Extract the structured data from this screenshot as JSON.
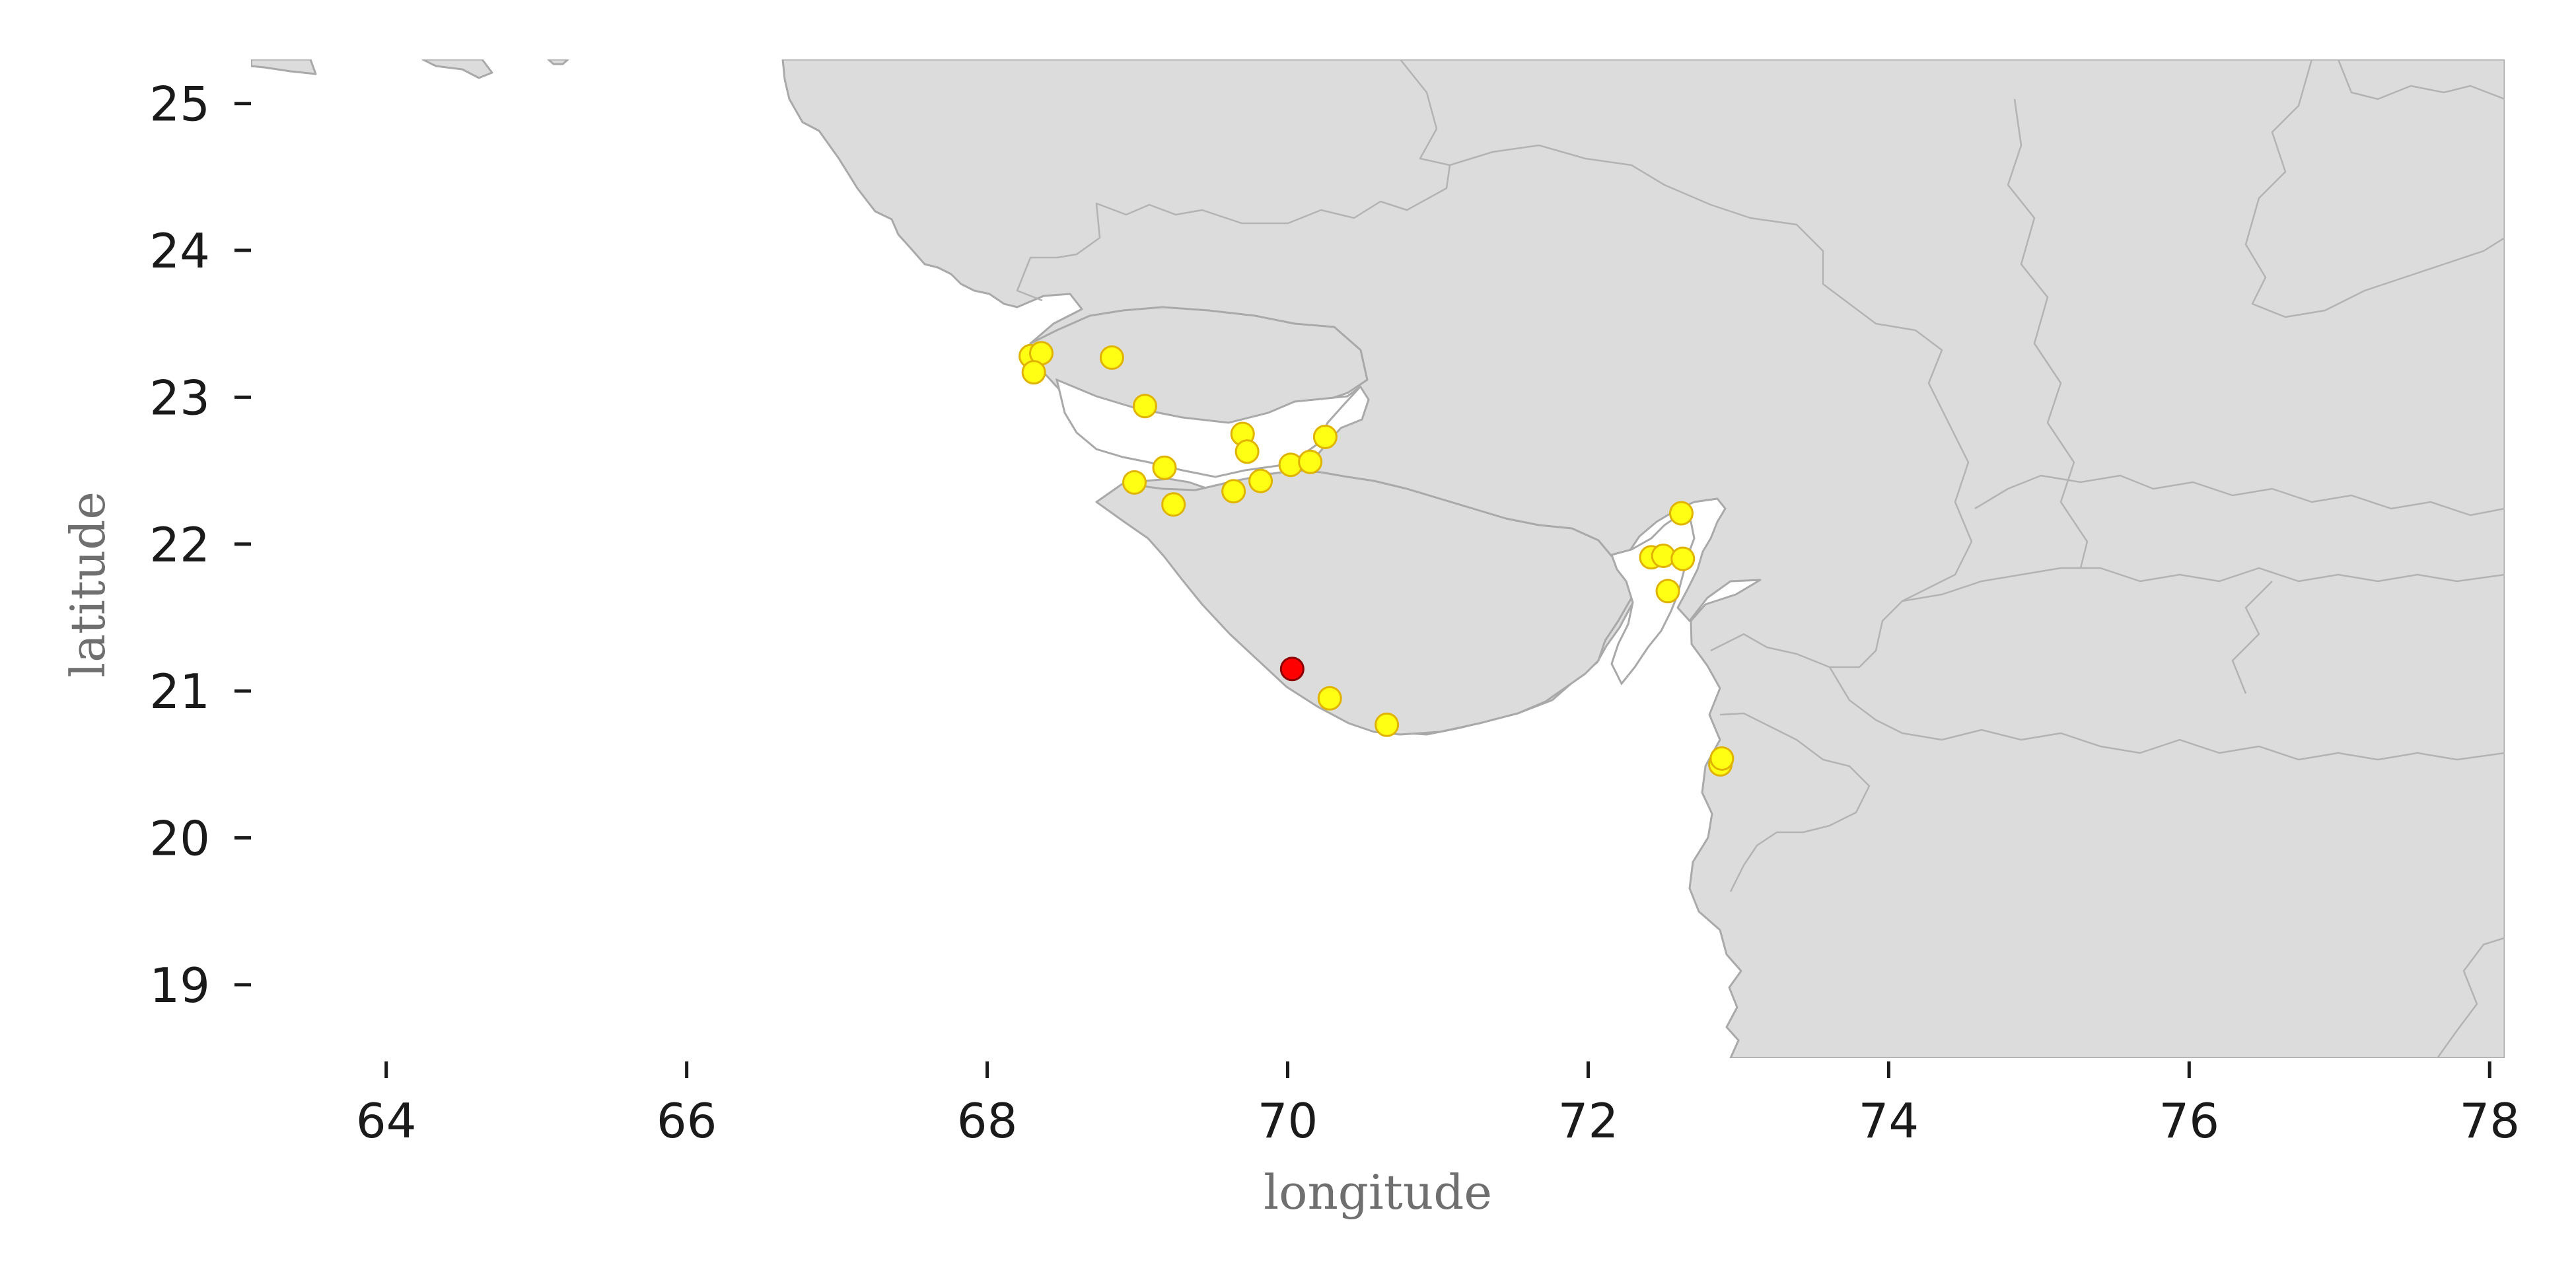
{
  "map": {
    "xlabel": "longitude",
    "ylabel": "latitude",
    "extent": {
      "lon": [
        63.1,
        78.1
      ],
      "lat": [
        18.5,
        25.3
      ]
    },
    "x_ticks": [
      "64",
      "66",
      "68",
      "70",
      "72",
      "74",
      "76",
      "78"
    ],
    "y_ticks": [
      "25",
      "24",
      "23",
      "22",
      "21",
      "20",
      "19"
    ],
    "colors": {
      "land": "#dcdcdc",
      "coast": "#a9a9a9",
      "point_fill": "#ffff14",
      "point_edge": "#e0b300",
      "highlight_fill": "#ff0000",
      "highlight_edge": "#8b0000"
    },
    "points": [
      {
        "lon": 68.29,
        "lat": 23.28
      },
      {
        "lon": 68.36,
        "lat": 23.3
      },
      {
        "lon": 68.31,
        "lat": 23.17
      },
      {
        "lon": 68.83,
        "lat": 23.27
      },
      {
        "lon": 69.05,
        "lat": 22.94
      },
      {
        "lon": 69.7,
        "lat": 22.75
      },
      {
        "lon": 69.73,
        "lat": 22.63
      },
      {
        "lon": 70.25,
        "lat": 22.73
      },
      {
        "lon": 70.02,
        "lat": 22.54
      },
      {
        "lon": 70.15,
        "lat": 22.56
      },
      {
        "lon": 69.82,
        "lat": 22.43
      },
      {
        "lon": 69.64,
        "lat": 22.36
      },
      {
        "lon": 69.18,
        "lat": 22.52
      },
      {
        "lon": 68.98,
        "lat": 22.42
      },
      {
        "lon": 69.24,
        "lat": 22.27
      },
      {
        "lon": 72.62,
        "lat": 22.21
      },
      {
        "lon": 72.42,
        "lat": 21.91
      },
      {
        "lon": 72.5,
        "lat": 21.92
      },
      {
        "lon": 72.63,
        "lat": 21.9
      },
      {
        "lon": 72.53,
        "lat": 21.68
      },
      {
        "lon": 70.28,
        "lat": 20.95
      },
      {
        "lon": 70.66,
        "lat": 20.77
      },
      {
        "lon": 72.88,
        "lat": 20.5
      },
      {
        "lon": 72.89,
        "lat": 20.54
      }
    ],
    "highlight": [
      {
        "lon": 70.03,
        "lat": 21.15
      }
    ]
  }
}
